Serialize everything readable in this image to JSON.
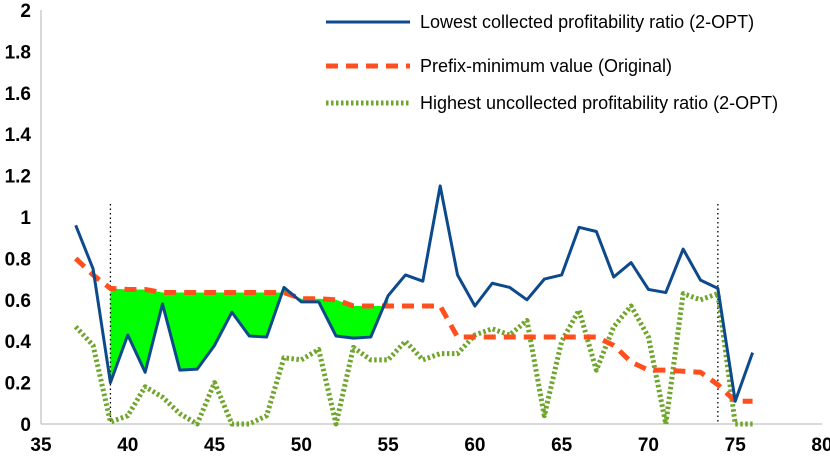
{
  "chart_data": {
    "type": "line",
    "title": "",
    "xlabel": "",
    "ylabel": "",
    "xlim": [
      35,
      80
    ],
    "ylim": [
      0,
      2
    ],
    "x_ticks": [
      "35",
      "40",
      "45",
      "50",
      "55",
      "60",
      "65",
      "70",
      "75",
      "80"
    ],
    "y_ticks": [
      "0",
      "0.2",
      "0.4",
      "0.6",
      "0.8",
      "1",
      "1.2",
      "1.4",
      "1.6",
      "1.8",
      "2"
    ],
    "grid": false,
    "legend_position": "top-right",
    "vertical_markers": [
      39,
      74
    ],
    "shaded_region": {
      "color": "#00ff00",
      "between": [
        "prefix_min",
        "lowest_collected"
      ],
      "x_range": [
        39,
        55
      ]
    },
    "series": [
      {
        "name": "Lowest collected profitability ratio (2-OPT)",
        "color": "#0d4a8c",
        "style": "solid",
        "x": [
          37,
          38,
          39,
          40,
          41,
          42,
          43,
          44,
          45,
          46,
          47,
          48,
          49,
          50,
          51,
          52,
          53,
          54,
          55,
          56,
          57,
          58,
          59,
          60,
          61,
          62,
          63,
          64,
          65,
          66,
          67,
          68,
          69,
          70,
          71,
          72,
          73,
          74,
          75,
          76
        ],
        "y": [
          0.96,
          0.75,
          0.2,
          0.43,
          0.25,
          0.58,
          0.26,
          0.265,
          0.38,
          0.54,
          0.425,
          0.42,
          0.66,
          0.59,
          0.59,
          0.425,
          0.415,
          0.42,
          0.62,
          0.72,
          0.69,
          1.15,
          0.72,
          0.57,
          0.68,
          0.66,
          0.6,
          0.7,
          0.72,
          0.95,
          0.93,
          0.71,
          0.78,
          0.65,
          0.635,
          0.845,
          0.695,
          0.655,
          0.11,
          0.345
        ]
      },
      {
        "name": "Prefix-minimum value (Original)",
        "color": "#ff4f1f",
        "style": "dashed",
        "x": [
          37,
          38,
          39,
          40,
          41,
          42,
          43,
          44,
          45,
          46,
          47,
          48,
          49,
          50,
          51,
          52,
          53,
          54,
          55,
          56,
          57,
          58,
          59,
          60,
          61,
          62,
          63,
          64,
          65,
          66,
          67,
          68,
          69,
          70,
          71,
          72,
          73,
          74,
          75,
          76
        ],
        "y": [
          0.8,
          0.72,
          0.655,
          0.65,
          0.65,
          0.635,
          0.635,
          0.635,
          0.635,
          0.635,
          0.635,
          0.635,
          0.635,
          0.605,
          0.605,
          0.6,
          0.57,
          0.57,
          0.57,
          0.57,
          0.57,
          0.57,
          0.42,
          0.42,
          0.42,
          0.42,
          0.42,
          0.42,
          0.42,
          0.42,
          0.42,
          0.38,
          0.3,
          0.26,
          0.26,
          0.255,
          0.25,
          0.19,
          0.11,
          0.11
        ]
      },
      {
        "name": "Highest uncollected profitability ratio (2-OPT)",
        "color": "#6fa52b",
        "style": "dotted",
        "x": [
          37,
          38,
          39,
          40,
          41,
          42,
          43,
          44,
          45,
          46,
          47,
          48,
          49,
          50,
          51,
          52,
          53,
          54,
          55,
          56,
          57,
          58,
          59,
          60,
          61,
          62,
          63,
          64,
          65,
          66,
          67,
          68,
          69,
          70,
          71,
          72,
          73,
          74,
          75,
          76
        ],
        "y": [
          0.47,
          0.38,
          0.01,
          0.04,
          0.18,
          0.13,
          0.05,
          0.0,
          0.2,
          0.0,
          0.0,
          0.04,
          0.32,
          0.31,
          0.36,
          0.0,
          0.37,
          0.31,
          0.31,
          0.4,
          0.31,
          0.34,
          0.34,
          0.43,
          0.46,
          0.43,
          0.5,
          0.04,
          0.4,
          0.55,
          0.26,
          0.47,
          0.57,
          0.42,
          0.0,
          0.63,
          0.6,
          0.63,
          0.0,
          0.0
        ]
      }
    ]
  }
}
